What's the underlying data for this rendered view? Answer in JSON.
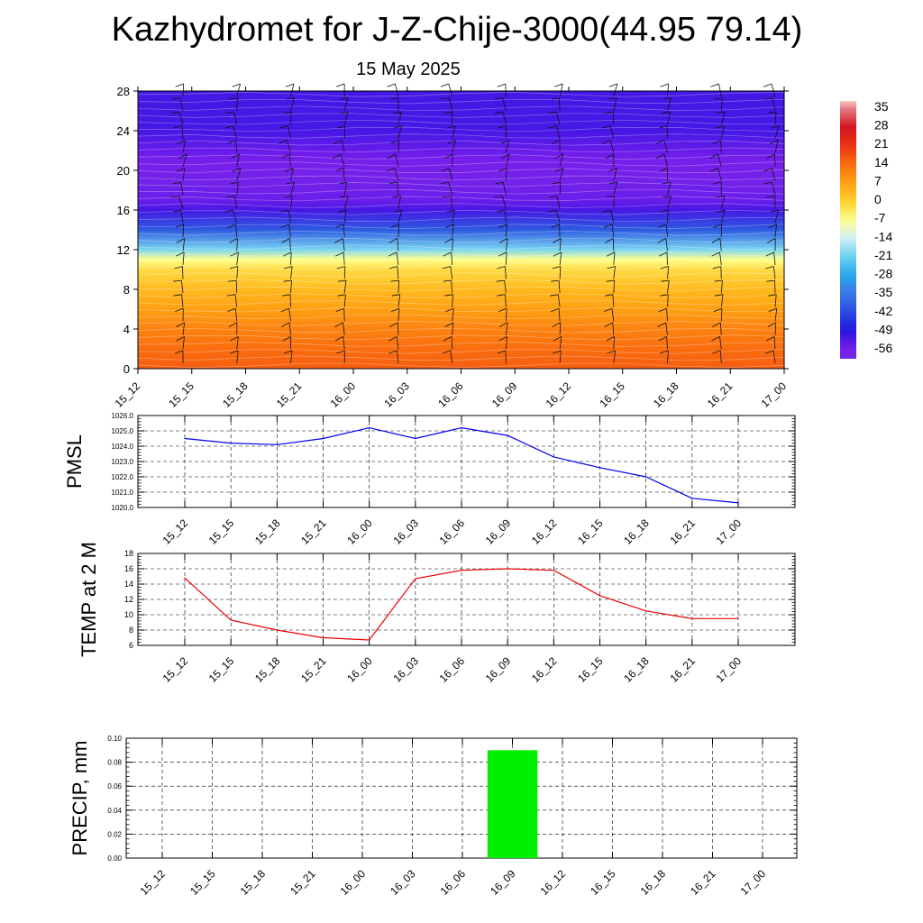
{
  "title": "Kazhydromet for J-Z-Chije-3000(44.95 79.14)",
  "subtitle": "15 May 2025",
  "time_labels": [
    "15_12",
    "15_15",
    "15_18",
    "15_21",
    "16_00",
    "16_03",
    "16_06",
    "16_09",
    "16_12",
    "16_15",
    "16_18",
    "16_21",
    "17_00"
  ],
  "chart_data": [
    {
      "type": "heatmap",
      "name": "temperature-cross-section",
      "x": [
        "15_12",
        "15_15",
        "15_18",
        "15_21",
        "16_00",
        "16_03",
        "16_06",
        "16_09",
        "16_12",
        "16_15",
        "16_18",
        "16_21",
        "17_00"
      ],
      "ylim": [
        0,
        28
      ],
      "yticks": [
        0,
        4,
        8,
        12,
        16,
        20,
        24,
        28
      ],
      "levels": [
        0,
        2,
        4,
        6,
        8,
        10,
        11,
        12,
        14,
        16,
        17,
        19,
        21,
        24,
        28
      ],
      "values_by_level": [
        16,
        14,
        11,
        7,
        3,
        -2,
        -7,
        -20,
        -40,
        -52,
        -55,
        -58,
        -56,
        -52,
        -52
      ],
      "colorbar": {
        "labels": [
          "35",
          "28",
          "21",
          "14",
          "7",
          "0",
          "-7",
          "-14",
          "-21",
          "-28",
          "-35",
          "-42",
          "-49",
          "-56"
        ],
        "min": -60,
        "max": 38
      },
      "wind_barbs": true
    },
    {
      "type": "line",
      "name": "PMSL",
      "ylabel": "PMSL",
      "x": [
        "15_12",
        "15_15",
        "15_18",
        "15_21",
        "16_00",
        "16_03",
        "16_06",
        "16_09",
        "16_12",
        "16_15",
        "16_18",
        "16_21",
        "17_00"
      ],
      "values": [
        1024.5,
        1024.2,
        1024.1,
        1024.5,
        1025.2,
        1024.5,
        1025.2,
        1024.7,
        1023.3,
        1022.6,
        1022.0,
        1020.6,
        1020.3
      ],
      "ylim": [
        1020,
        1026
      ],
      "yticks": [
        "1020.0",
        "1021.0",
        "1022.0",
        "1023.0",
        "1024.0",
        "1025.0",
        "1026.0"
      ],
      "color": "#0000ee"
    },
    {
      "type": "line",
      "name": "TEMP at 2 M",
      "ylabel": "TEMP at 2 M",
      "x": [
        "15_12",
        "15_15",
        "15_18",
        "15_21",
        "16_00",
        "16_03",
        "16_06",
        "16_09",
        "16_12",
        "16_15",
        "16_18",
        "16_21",
        "17_00"
      ],
      "values": [
        14.8,
        9.3,
        8.0,
        7.0,
        6.7,
        14.7,
        15.8,
        16.0,
        15.8,
        12.5,
        10.5,
        9.5,
        9.5
      ],
      "ylim": [
        6,
        18
      ],
      "yticks": [
        "6",
        "8",
        "10",
        "12",
        "14",
        "16",
        "18"
      ],
      "color": "#ee0000"
    },
    {
      "type": "bar",
      "name": "PRECIP, mm",
      "ylabel": "PRECIP, mm",
      "categories": [
        "15_12",
        "15_15",
        "15_18",
        "15_21",
        "16_00",
        "16_03",
        "16_06",
        "16_09",
        "16_12",
        "16_15",
        "16_18",
        "16_21",
        "17_00"
      ],
      "values": [
        0,
        0,
        0,
        0,
        0,
        0,
        0,
        0.09,
        0,
        0,
        0,
        0,
        0
      ],
      "ylim": [
        0,
        0.1
      ],
      "yticks": [
        "0.00",
        "0.02",
        "0.04",
        "0.06",
        "0.08",
        "0.10"
      ],
      "color": "#00ee00"
    }
  ]
}
